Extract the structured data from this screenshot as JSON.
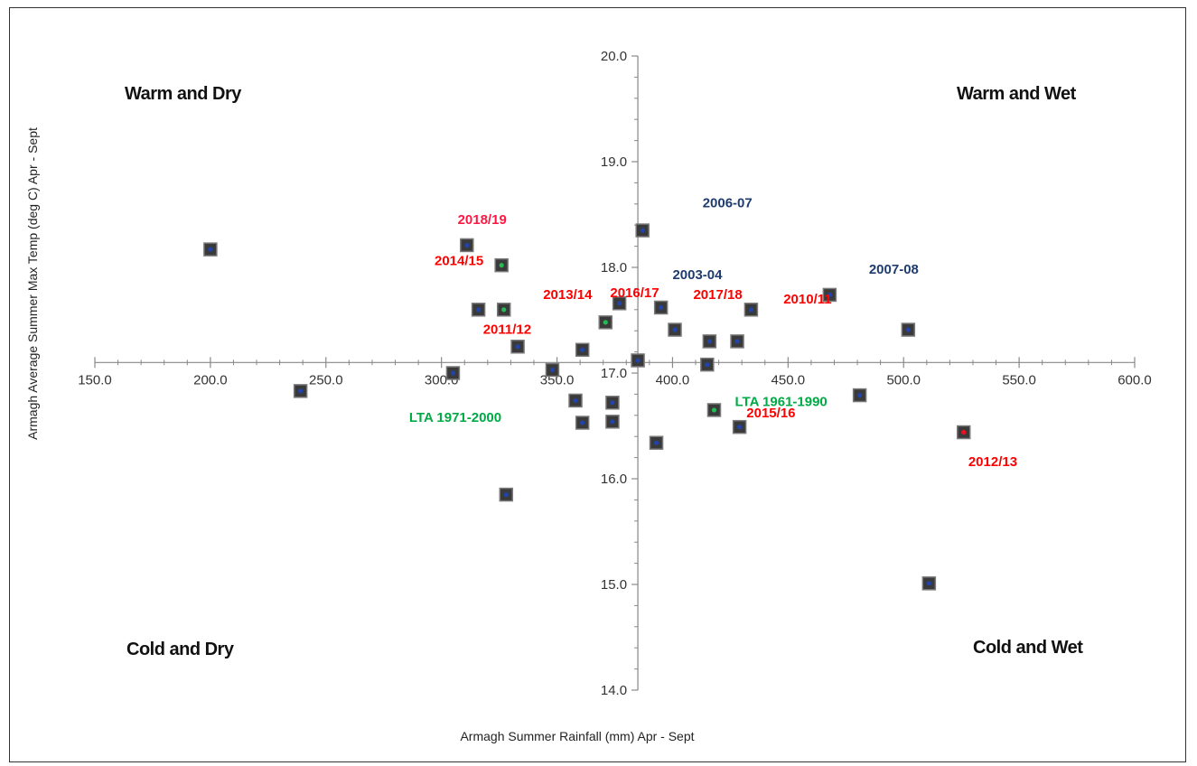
{
  "chart_data": {
    "type": "scatter",
    "title": "",
    "xlabel": "Armagh Summer Rainfall (mm) Apr - Sept",
    "ylabel": "Armagh Average Summer Max Temp (deg C) Apr - Sept",
    "xlim": [
      150,
      600
    ],
    "ylim": [
      14,
      20
    ],
    "x_ticks": [
      "150.0",
      "200.0",
      "250.0",
      "300.0",
      "350.0",
      "400.0",
      "450.0",
      "500.0",
      "550.0",
      "600.0"
    ],
    "y_ticks": [
      "14.0",
      "15.0",
      "16.0",
      "17.0",
      "18.0",
      "19.0",
      "20.0"
    ],
    "axis_crossing": {
      "x": 17.1,
      "y": 385
    },
    "grid": false,
    "legend": "none",
    "quadrant_labels": {
      "top_left": "Warm and Dry",
      "top_right": "Warm and Wet",
      "bottom_left": "Cold and Dry",
      "bottom_right": "Cold and Wet"
    },
    "colors": {
      "marker_fill": "#3a3a3a",
      "marker_edge": "#7a7a7a",
      "dot_blue": "#2244aa",
      "dot_green": "#22bb55",
      "dot_red": "#ee1122",
      "label_red": "#ff0000",
      "label_navy": "#1f3c6e",
      "label_green": "#00aa44",
      "label_pink": "#ff1744"
    },
    "points": [
      {
        "x": 200,
        "y": 18.17,
        "dot": "blue"
      },
      {
        "x": 239,
        "y": 16.83,
        "dot": "blue"
      },
      {
        "x": 305,
        "y": 17.0,
        "dot": "blue"
      },
      {
        "x": 311,
        "y": 18.21,
        "dot": "blue"
      },
      {
        "x": 316,
        "y": 17.6,
        "dot": "blue"
      },
      {
        "x": 326,
        "y": 18.02,
        "dot": "green"
      },
      {
        "x": 327,
        "y": 17.6,
        "dot": "green"
      },
      {
        "x": 328,
        "y": 15.85,
        "dot": "blue"
      },
      {
        "x": 333,
        "y": 17.25,
        "dot": "blue"
      },
      {
        "x": 348,
        "y": 17.03,
        "dot": "blue"
      },
      {
        "x": 358,
        "y": 16.74,
        "dot": "blue"
      },
      {
        "x": 361,
        "y": 17.22,
        "dot": "blue"
      },
      {
        "x": 361,
        "y": 16.53,
        "dot": "blue"
      },
      {
        "x": 371,
        "y": 17.48,
        "dot": "green"
      },
      {
        "x": 374,
        "y": 16.72,
        "dot": "blue"
      },
      {
        "x": 374,
        "y": 16.54,
        "dot": "blue"
      },
      {
        "x": 377,
        "y": 17.66,
        "dot": "blue"
      },
      {
        "x": 385,
        "y": 17.12,
        "dot": "blue"
      },
      {
        "x": 387,
        "y": 18.35,
        "dot": "blue"
      },
      {
        "x": 393,
        "y": 16.34,
        "dot": "blue"
      },
      {
        "x": 395,
        "y": 17.62,
        "dot": "blue"
      },
      {
        "x": 401,
        "y": 17.41,
        "dot": "blue"
      },
      {
        "x": 415,
        "y": 17.08,
        "dot": "blue"
      },
      {
        "x": 416,
        "y": 17.3,
        "dot": "blue"
      },
      {
        "x": 418,
        "y": 16.65,
        "dot": "green"
      },
      {
        "x": 428,
        "y": 17.3,
        "dot": "blue"
      },
      {
        "x": 429,
        "y": 16.49,
        "dot": "blue"
      },
      {
        "x": 434,
        "y": 17.6,
        "dot": "blue"
      },
      {
        "x": 468,
        "y": 17.74,
        "dot": "blue"
      },
      {
        "x": 481,
        "y": 16.79,
        "dot": "blue"
      },
      {
        "x": 502,
        "y": 17.41,
        "dot": "blue"
      },
      {
        "x": 511,
        "y": 15.01,
        "dot": "blue"
      },
      {
        "x": 526,
        "y": 16.44,
        "dot": "red"
      }
    ],
    "annotations": [
      {
        "text": "2018/19",
        "color": "pink",
        "x": 307,
        "y": 18.41
      },
      {
        "text": "2014/15",
        "color": "red",
        "x": 297,
        "y": 18.02
      },
      {
        "text": "2013/14",
        "color": "red",
        "x": 344,
        "y": 17.7
      },
      {
        "text": "2011/12",
        "color": "red",
        "x": 318,
        "y": 17.37
      },
      {
        "text": "2016/17",
        "color": "red",
        "x": 373,
        "y": 17.72
      },
      {
        "text": "2017/18",
        "color": "red",
        "x": 409,
        "y": 17.7
      },
      {
        "text": "2010/11",
        "color": "red",
        "x": 448,
        "y": 17.66
      },
      {
        "text": "2015/16",
        "color": "red",
        "x": 432,
        "y": 16.58
      },
      {
        "text": "2012/13",
        "color": "red",
        "x": 528,
        "y": 16.12
      },
      {
        "text": "2006-07",
        "color": "navy",
        "x": 413,
        "y": 18.57
      },
      {
        "text": "2003-04",
        "color": "navy",
        "x": 400,
        "y": 17.89
      },
      {
        "text": "2007-08",
        "color": "navy",
        "x": 485,
        "y": 17.94
      },
      {
        "text": "LTA 1961-1990",
        "color": "green",
        "x": 427,
        "y": 16.69
      },
      {
        "text": "LTA 1971-2000",
        "color": "green",
        "x": 286,
        "y": 16.54
      }
    ]
  }
}
